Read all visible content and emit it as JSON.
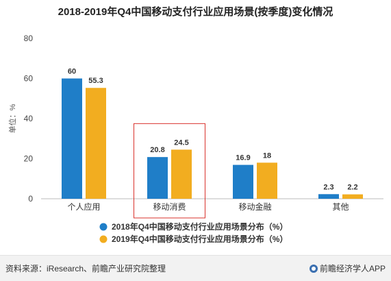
{
  "chart_data": {
    "type": "bar",
    "title": "2018-2019年Q4中国移动支付行业应用场景(按季度)变化情况",
    "ylabel": "单位：%",
    "xlabel": "",
    "ylim": [
      0,
      80
    ],
    "yticks": [
      0,
      20,
      40,
      60,
      80
    ],
    "categories": [
      "个人应用",
      "移动消费",
      "移动金融",
      "其他"
    ],
    "series": [
      {
        "name": "2018年Q4中国移动支付行业应用场景分布（%）",
        "color": "#1f7ec8",
        "values": [
          60,
          20.8,
          16.9,
          2.3
        ]
      },
      {
        "name": "2019年Q4中国移动支付行业应用场景分布（%）",
        "color": "#f2ad20",
        "values": [
          55.3,
          24.5,
          18,
          2.2
        ]
      }
    ],
    "highlight_category": "移动消费",
    "highlight_color": "#d9312b",
    "legend_position": "bottom",
    "grid": false
  },
  "footer": {
    "source": "资料来源：iResearch、前瞻产业研究院整理",
    "brand": "前瞻经济学人APP"
  }
}
